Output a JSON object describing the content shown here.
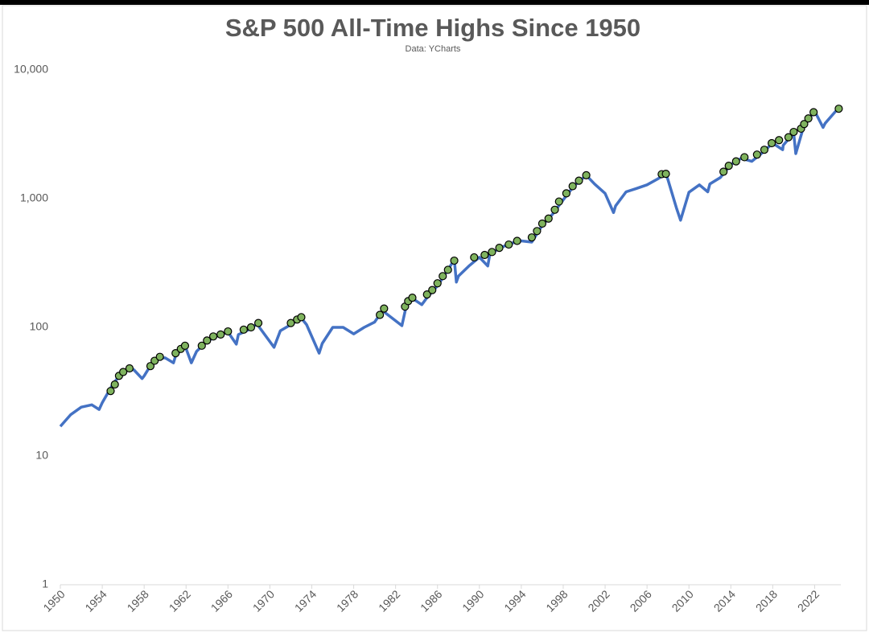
{
  "chart_data": {
    "type": "line",
    "title": "S&P 500 All-Time Highs Since 1950",
    "subtitle": "Data: YCharts",
    "log_scale_y": true,
    "grid": false,
    "xlim": [
      1950,
      2024.5
    ],
    "xticks": [
      1950,
      1954,
      1958,
      1962,
      1966,
      1970,
      1974,
      1978,
      1982,
      1986,
      1990,
      1994,
      1998,
      2002,
      2006,
      2010,
      2014,
      2018,
      2022
    ],
    "ylim": [
      1,
      10000
    ],
    "yticks": [
      {
        "value": 10000,
        "label": "10,000"
      },
      {
        "value": 1000,
        "label": "1,000"
      },
      100,
      10,
      1
    ],
    "series": [
      {
        "color": "#4472c4",
        "style": "line",
        "x": [
          1950,
          1951,
          1952,
          1953,
          1953.7,
          1954,
          1955,
          1956,
          1957,
          1957.8,
          1958,
          1959,
          1960,
          1960.8,
          1961,
          1961.9,
          1962.5,
          1963,
          1964,
          1965,
          1966,
          1966.8,
          1967,
          1968,
          1968.9,
          1969,
          1970.4,
          1971,
          1972,
          1973,
          1973.5,
          1974.7,
          1975,
          1976,
          1977,
          1978,
          1979,
          1980,
          1980.9,
          1981,
          1982.6,
          1983,
          1983.5,
          1984.5,
          1985,
          1986,
          1987,
          1987.6,
          1987.8,
          1988,
          1989,
          1990,
          1990.8,
          1991,
          1992,
          1993,
          1994,
          1995,
          1996,
          1997,
          1998,
          1999,
          2000.2,
          2001,
          2002,
          2002.8,
          2003,
          2004,
          2005,
          2006,
          2007,
          2007.8,
          2008,
          2008.8,
          2009.2,
          2010,
          2011,
          2011.8,
          2012,
          2013,
          2014,
          2015,
          2016,
          2017,
          2018,
          2018.95,
          2019,
          2020,
          2020.2,
          2021,
          2022,
          2022.8,
          2023,
          2024,
          2024.4
        ],
        "values": [
          17,
          21,
          24,
          25,
          23,
          26,
          36,
          46,
          47,
          40,
          42,
          57,
          58,
          53,
          60,
          72,
          53,
          65,
          78,
          86,
          92,
          74,
          88,
          96,
          108,
          100,
          70,
          94,
          105,
          118,
          105,
          63,
          75,
          100,
          100,
          89,
          100,
          110,
          140,
          130,
          103,
          145,
          170,
          150,
          170,
          210,
          280,
          336,
          225,
          250,
          300,
          350,
          300,
          370,
          415,
          450,
          470,
          460,
          620,
          760,
          980,
          1250,
          1520,
          1300,
          1100,
          780,
          880,
          1130,
          1200,
          1280,
          1420,
          1560,
          1400,
          850,
          680,
          1120,
          1280,
          1130,
          1300,
          1460,
          1840,
          2060,
          1950,
          2270,
          2700,
          2400,
          2600,
          3230,
          2240,
          3750,
          4790,
          3580,
          3850,
          4770,
          4950
        ]
      },
      {
        "color": "#7fb35e",
        "edge_color": "#000000",
        "style": "markers",
        "x": [
          1954.8,
          1955.2,
          1955.6,
          1956.0,
          1956.6,
          1958.6,
          1959.0,
          1959.5,
          1961.0,
          1961.5,
          1961.9,
          1963.5,
          1964.0,
          1964.6,
          1965.3,
          1966.0,
          1967.5,
          1968.2,
          1968.9,
          1972.0,
          1972.6,
          1973.0,
          1980.5,
          1980.9,
          1982.9,
          1983.2,
          1983.6,
          1985.0,
          1985.5,
          1986.0,
          1986.5,
          1987.0,
          1987.6,
          1989.5,
          1990.5,
          1991.2,
          1991.9,
          1992.8,
          1993.6,
          1995.0,
          1995.5,
          1996.0,
          1996.6,
          1997.2,
          1997.6,
          1998.3,
          1998.9,
          1999.5,
          2000.2,
          2007.4,
          2007.8,
          2013.3,
          2013.8,
          2014.5,
          2015.3,
          2016.5,
          2017.2,
          2017.9,
          2018.6,
          2019.5,
          2020.0,
          2020.7,
          2021.0,
          2021.4,
          2021.9,
          2024.3
        ],
        "values": [
          32,
          36,
          42,
          45,
          48,
          50,
          55,
          59,
          63,
          68,
          72,
          72,
          79,
          85,
          88,
          93,
          96,
          100,
          108,
          108,
          115,
          120,
          125,
          140,
          145,
          160,
          170,
          180,
          195,
          220,
          250,
          280,
          330,
          350,
          365,
          385,
          415,
          440,
          470,
          500,
          560,
          640,
          700,
          820,
          950,
          1100,
          1250,
          1380,
          1520,
          1550,
          1560,
          1620,
          1800,
          1950,
          2100,
          2200,
          2400,
          2700,
          2850,
          3000,
          3300,
          3500,
          3800,
          4200,
          4700,
          5000
        ]
      }
    ]
  }
}
